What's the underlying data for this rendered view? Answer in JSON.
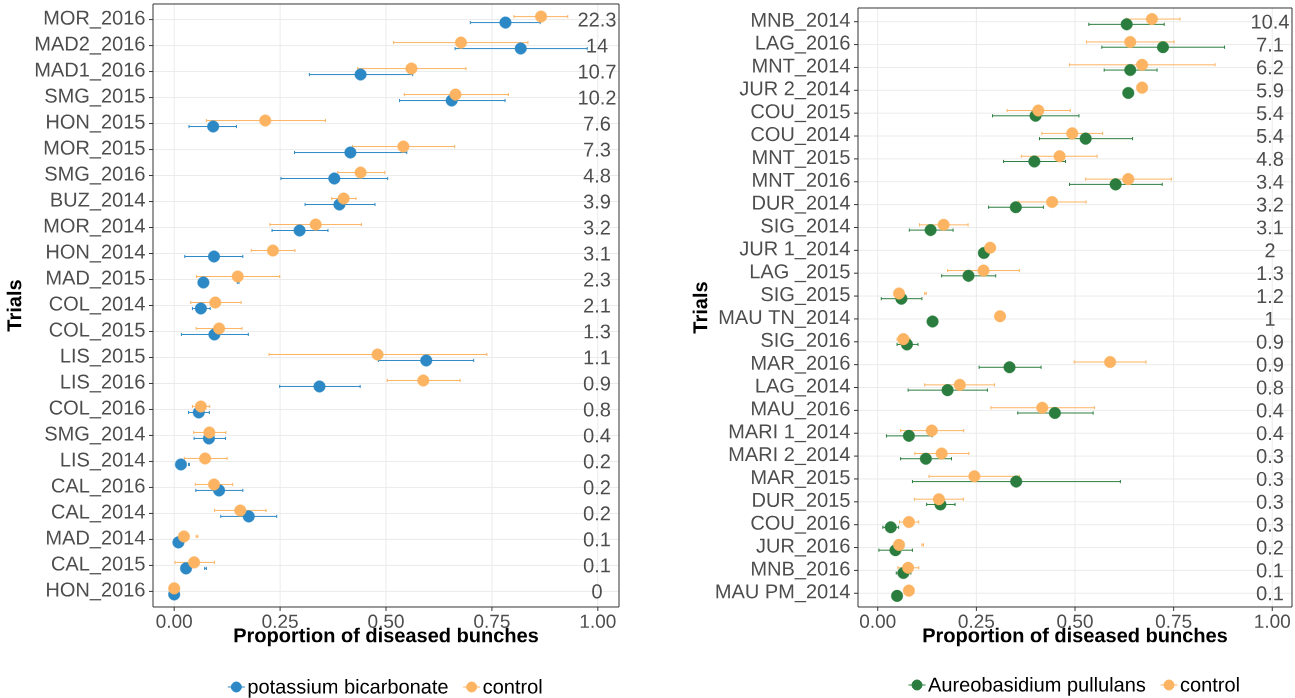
{
  "chart_data": [
    {
      "type": "scatter",
      "orientation": "horizontal",
      "xlabel": "Proportion of diseased bunches",
      "ylabel": "Trials",
      "categories": [
        "MOR_2016",
        "MAD2_2016",
        "MAD1_2016",
        "SMG_2015",
        "HON_2015",
        "MOR_2015",
        "SMG_2016",
        "BUZ_2014",
        "MOR_2014",
        "HON_2014",
        "MAD_2015",
        "COL_2014",
        "COL_2015",
        "LIS_2015",
        "LIS_2016",
        "COL_2016",
        "SMG_2014",
        "LIS_2014",
        "CAL_2016",
        "CAL_2014",
        "MAD_2014",
        "CAL_2015",
        "HON_2016"
      ],
      "xlim": [
        -0.05,
        1.05
      ],
      "xticks": [
        {
          "value": 0,
          "label": "0.00"
        },
        {
          "value": 0.25,
          "label": "0.25"
        },
        {
          "value": 0.5,
          "label": "0.50"
        },
        {
          "value": 0.75,
          "label": "0.75"
        },
        {
          "value": 1,
          "label": "1.00"
        }
      ],
      "series": [
        {
          "name": "potassium bicarbonate",
          "color": "#2c89c6",
          "values": [
            0.782,
            0.818,
            0.44,
            0.655,
            0.092,
            0.416,
            0.378,
            0.39,
            0.296,
            0.094,
            0.069,
            0.063,
            0.095,
            0.595,
            0.343,
            0.058,
            0.082,
            0.016,
            0.106,
            0.176,
            0.01,
            0.028,
            0.0
          ],
          "errors": [
            [
              0.699,
              0.864
            ],
            [
              0.663,
              0.975
            ],
            [
              0.319,
              0.563
            ],
            [
              0.532,
              0.781
            ],
            [
              0.035,
              0.147
            ],
            [
              0.284,
              0.549
            ],
            [
              0.252,
              0.504
            ],
            [
              0.309,
              0.474
            ],
            [
              0.231,
              0.363
            ],
            [
              0.025,
              0.162
            ],
            [
              0.149,
              0.153
            ],
            [
              0.043,
              0.085
            ],
            [
              0.017,
              0.175
            ],
            [
              0.482,
              0.707
            ],
            [
              0.249,
              0.439
            ],
            [
              0.034,
              0.083
            ],
            [
              0.047,
              0.121
            ],
            [
              0.034,
              0.036
            ],
            [
              0.051,
              0.162
            ],
            [
              0.11,
              0.242
            ],
            null,
            [
              0.072,
              0.076
            ],
            null
          ]
        },
        {
          "name": "control",
          "color": "#fdb462",
          "values": [
            0.866,
            0.677,
            0.56,
            0.664,
            0.215,
            0.541,
            0.44,
            0.4,
            0.334,
            0.233,
            0.15,
            0.097,
            0.106,
            0.48,
            0.588,
            0.063,
            0.083,
            0.073,
            0.094,
            0.156,
            0.023,
            0.047,
            0.0
          ],
          "errors": [
            [
              0.802,
              0.929
            ],
            [
              0.518,
              0.835
            ],
            [
              0.433,
              0.689
            ],
            [
              0.543,
              0.789
            ],
            [
              0.076,
              0.357
            ],
            [
              0.421,
              0.662
            ],
            [
              0.386,
              0.497
            ],
            [
              0.372,
              0.429
            ],
            [
              0.226,
              0.442
            ],
            [
              0.182,
              0.285
            ],
            [
              0.053,
              0.249
            ],
            [
              0.039,
              0.158
            ],
            [
              0.052,
              0.16
            ],
            [
              0.224,
              0.738
            ],
            [
              0.503,
              0.675
            ],
            [
              0.043,
              0.084
            ],
            [
              0.046,
              0.122
            ],
            [
              0.024,
              0.125
            ],
            [
              0.05,
              0.138
            ],
            [
              0.095,
              0.217
            ],
            [
              0.052,
              0.056
            ],
            [
              0.002,
              0.095
            ],
            null
          ]
        }
      ],
      "annotations": [
        "22.3",
        "14",
        "10.7",
        "10.2",
        "7.6",
        "7.3",
        "4.8",
        "3.9",
        "3.2",
        "3.1",
        "2.3",
        "2.1",
        "1.3",
        "1.1",
        "0.9",
        "0.8",
        "0.4",
        "0.2",
        "0.2",
        "0.2",
        "0.1",
        "0.1",
        "0"
      ],
      "grid": true,
      "legend": "bottom",
      "marker": "circle"
    },
    {
      "type": "scatter",
      "orientation": "horizontal",
      "xlabel": "Proportion of diseased bunches",
      "ylabel": "Trials",
      "categories": [
        "MNB_2014",
        "LAG_2016",
        "MNT_2014",
        "JUR 2_2014",
        "COU_2015",
        "COU_2014",
        "MNT_2015",
        "MNT_2016",
        "DUR_2014",
        "SIG_2014",
        "JUR 1_2014",
        "LAG _2015",
        "SIG_2015",
        "MAU TN_2014",
        "SIG_2016",
        "MAR_2016",
        "LAG_2014",
        "MAU_2016",
        "MARI 1_2014",
        "MARI 2_2014",
        "MAR_2015",
        "DUR_2015",
        "COU_2016",
        "JUR_2016",
        "MNB_2016",
        "MAU PM_2014"
      ],
      "xlim": [
        -0.05,
        1.05
      ],
      "xticks": [
        {
          "value": 0,
          "label": "0.00"
        },
        {
          "value": 0.25,
          "label": "0.25"
        },
        {
          "value": 0.5,
          "label": "0.50"
        },
        {
          "value": 0.75,
          "label": "0.75"
        },
        {
          "value": 1,
          "label": "1.00"
        }
      ],
      "series": [
        {
          "name": "Aureobasidium pullulans",
          "color": "#2a7d3e",
          "values": [
            0.631,
            0.723,
            0.64,
            0.635,
            0.4,
            0.527,
            0.397,
            0.603,
            0.35,
            0.134,
            0.269,
            0.23,
            0.06,
            0.139,
            0.074,
            0.334,
            0.177,
            0.449,
            0.079,
            0.122,
            0.351,
            0.159,
            0.033,
            0.045,
            0.065,
            0.049
          ],
          "errors": [
            [
              0.535,
              0.726
            ],
            [
              0.568,
              0.879
            ],
            [
              0.574,
              0.708
            ],
            null,
            [
              0.291,
              0.51
            ],
            [
              0.41,
              0.646
            ],
            [
              0.319,
              0.476
            ],
            [
              0.486,
              0.721
            ],
            [
              0.281,
              0.42
            ],
            [
              0.08,
              0.191
            ],
            null,
            [
              0.162,
              0.299
            ],
            [
              0.009,
              0.112
            ],
            null,
            [
              0.049,
              0.102
            ],
            [
              0.257,
              0.414
            ],
            [
              0.077,
              0.278
            ],
            [
              0.355,
              0.546
            ],
            [
              0.022,
              0.138
            ],
            [
              0.058,
              0.187
            ],
            [
              0.088,
              0.615
            ],
            [
              0.124,
              0.196
            ],
            [
              0.013,
              0.053
            ],
            [
              0.003,
              0.088
            ],
            [
              0.047,
              0.084
            ],
            null
          ]
        },
        {
          "name": "control",
          "color": "#fdb462",
          "values": [
            0.695,
            0.64,
            0.67,
            0.67,
            0.407,
            0.493,
            0.461,
            0.635,
            0.442,
            0.167,
            0.285,
            0.268,
            0.054,
            0.31,
            0.065,
            0.589,
            0.208,
            0.417,
            0.137,
            0.162,
            0.245,
            0.155,
            0.079,
            0.054,
            0.077,
            0.079
          ],
          "errors": [
            [
              0.63,
              0.766
            ],
            [
              0.529,
              0.751
            ],
            [
              0.486,
              0.855
            ],
            null,
            [
              0.328,
              0.488
            ],
            [
              0.416,
              0.57
            ],
            [
              0.364,
              0.556
            ],
            [
              0.527,
              0.744
            ],
            [
              0.356,
              0.528
            ],
            [
              0.106,
              0.229
            ],
            null,
            [
              0.177,
              0.359
            ],
            [
              0.119,
              0.123
            ],
            null,
            [
              0.049,
              0.082
            ],
            [
              0.498,
              0.68
            ],
            [
              0.119,
              0.296
            ],
            [
              0.287,
              0.549
            ],
            [
              0.058,
              0.218
            ],
            [
              0.094,
              0.231
            ],
            [
              0.13,
              0.359
            ],
            [
              0.093,
              0.217
            ],
            [
              0.055,
              0.104
            ],
            [
              0.112,
              0.116
            ],
            [
              0.051,
              0.104
            ],
            null
          ]
        }
      ],
      "annotations": [
        "10.4",
        "7.1",
        "6.2",
        "5.9",
        "5.4",
        "5.4",
        "4.8",
        "3.4",
        "3.2",
        "3.1",
        "2",
        "1.3",
        "1.2",
        "1",
        "0.9",
        "0.9",
        "0.8",
        "0.4",
        "0.4",
        "0.3",
        "0.3",
        "0.3",
        "0.3",
        "0.2",
        "0.1",
        "0.1"
      ],
      "grid": true,
      "legend": "bottom",
      "marker": "circle"
    }
  ]
}
